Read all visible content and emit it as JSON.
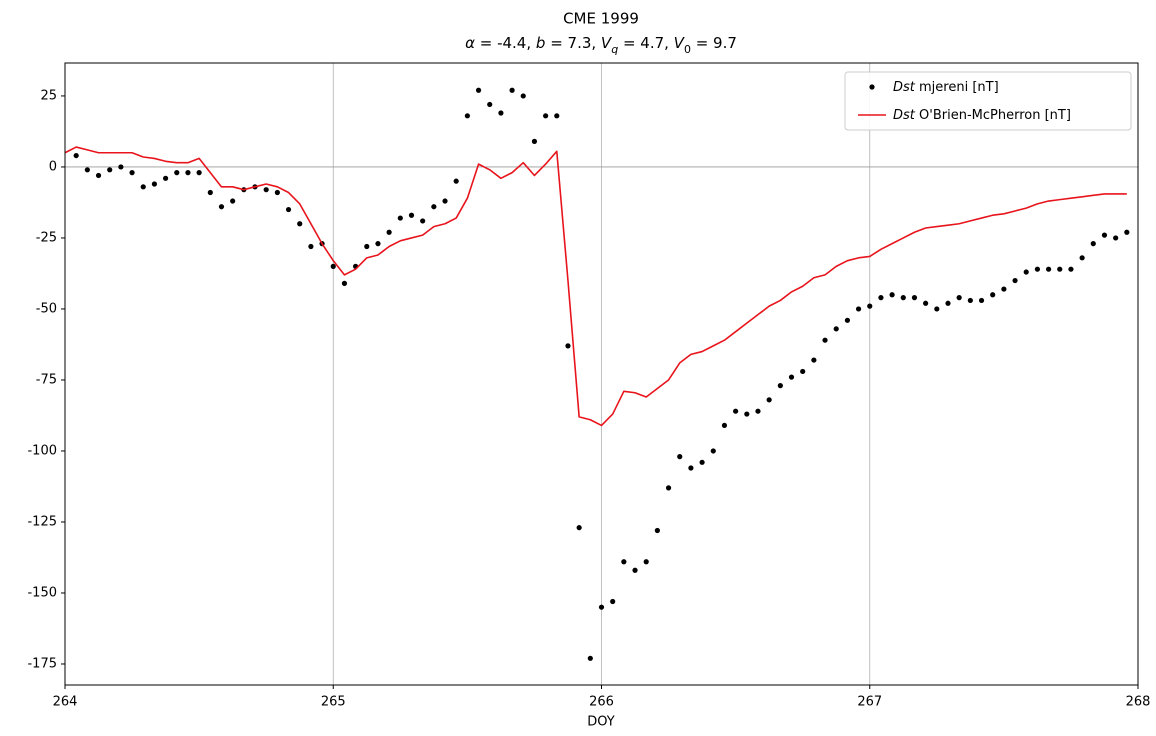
{
  "chart_data": {
    "type": "scatter_line",
    "title": "CME 1999",
    "subtitle": [
      {
        "text": "α",
        "italic": true
      },
      {
        "text": " = -4.4,  "
      },
      {
        "text": "b",
        "italic": true
      },
      {
        "text": " = 7.3,  "
      },
      {
        "text": "V",
        "italic": true
      },
      {
        "text": "q",
        "italic": true,
        "sub": true
      },
      {
        "text": " = 4.7,  "
      },
      {
        "text": "V",
        "italic": true
      },
      {
        "text": "0",
        "sub": true
      },
      {
        "text": " = 9.7"
      }
    ],
    "x_label": "DOY",
    "x": [
      264,
      264.0417,
      264.0833,
      264.125,
      264.1667,
      264.2083,
      264.25,
      264.2917,
      264.3333,
      264.375,
      264.4167,
      264.4583,
      264.5,
      264.5417,
      264.5833,
      264.625,
      264.6667,
      264.7083,
      264.75,
      264.7917,
      264.8333,
      264.875,
      264.9167,
      264.9583,
      265,
      265.0417,
      265.0833,
      265.125,
      265.1667,
      265.2083,
      265.25,
      265.2917,
      265.3333,
      265.375,
      265.4167,
      265.4583,
      265.5,
      265.5417,
      265.5833,
      265.625,
      265.6667,
      265.7083,
      265.75,
      265.7917,
      265.8333,
      265.875,
      265.9167,
      265.9583,
      266,
      266.0417,
      266.0833,
      266.125,
      266.1667,
      266.2083,
      266.25,
      266.2917,
      266.3333,
      266.375,
      266.4167,
      266.4583,
      266.5,
      266.5417,
      266.5833,
      266.625,
      266.6667,
      266.7083,
      266.75,
      266.7917,
      266.8333,
      266.875,
      266.9167,
      266.9583,
      267,
      267.0417,
      267.0833,
      267.125,
      267.1667,
      267.2083,
      267.25,
      267.2917,
      267.3333,
      267.375,
      267.4167,
      267.4583,
      267.5,
      267.5417,
      267.5833,
      267.625,
      267.6667,
      267.7083,
      267.75,
      267.7917,
      267.8333,
      267.875,
      267.9167,
      267.9583
    ],
    "series": [
      {
        "name": "Dst mjereni [nT]",
        "style": "markers",
        "color": "#000000",
        "values": [
          null,
          4,
          -1,
          -3,
          -1,
          0,
          -2,
          -7,
          -6,
          -4,
          -2,
          -2,
          -2,
          -9,
          -14,
          -12,
          -8,
          -7,
          -8,
          -9,
          -15,
          -20,
          -28,
          -27,
          -35,
          -41,
          -35,
          -28,
          -27,
          -23,
          -18,
          -17,
          -19,
          -14,
          -12,
          -5,
          18,
          27,
          22,
          19,
          27,
          25,
          9,
          18,
          18,
          -63,
          -127,
          -173,
          -155,
          -153,
          -139,
          -142,
          -139,
          -128,
          -113,
          -102,
          -106,
          -104,
          -100,
          -91,
          -86,
          -87,
          -86,
          -82,
          -77,
          -74,
          -72,
          -68,
          -61,
          -57,
          -54,
          -50,
          -49,
          -46,
          -45,
          -46,
          -46,
          -48,
          -50,
          -48,
          -46,
          -47,
          -47,
          -45,
          -43,
          -40,
          -37,
          -36,
          -36,
          -36,
          -36,
          -32,
          -27,
          -24,
          -25,
          -23
        ]
      },
      {
        "name": "Dst O'Brien-McPherron [nT]",
        "style": "line",
        "color": "#e8141c",
        "values": [
          5,
          7,
          6,
          5,
          5,
          5,
          5,
          3.5,
          3,
          2,
          1.5,
          1.5,
          3,
          -2,
          -7,
          -7,
          -8,
          -7,
          -6,
          -7,
          -9,
          -13,
          -20,
          -27,
          -33,
          -38,
          -36,
          -32,
          -31,
          -28,
          -26,
          -25,
          -24,
          -21,
          -20,
          -18,
          -11,
          1,
          -1,
          -4,
          -2,
          1.5,
          -3,
          1,
          5.5,
          -40,
          -88,
          -89,
          -91,
          -87,
          -79,
          -79.5,
          -81,
          -78,
          -75,
          -69,
          -66,
          -65,
          -63,
          -61,
          -58,
          -55,
          -52,
          -49,
          -47,
          -44,
          -42,
          -39,
          -38,
          -35,
          -33,
          -32,
          -31.5,
          -29,
          -27,
          -25,
          -23,
          -21.5,
          -21,
          -20.5,
          -20,
          -19,
          -18,
          -17,
          -16.5,
          -15.5,
          -14.5,
          -13,
          -12,
          -11.5,
          -11,
          -10.5,
          -10,
          -9.5,
          -9.5,
          -9.5
        ]
      }
    ],
    "xlim": [
      264,
      268
    ],
    "xticks": [
      264,
      265,
      266,
      267,
      268
    ],
    "ylim": [
      -182.4,
      36.6
    ],
    "yticks": [
      -175,
      -150,
      -125,
      -100,
      -75,
      -50,
      -25,
      0,
      25
    ],
    "grid": "x",
    "hline": 0,
    "legend": "upper right"
  }
}
